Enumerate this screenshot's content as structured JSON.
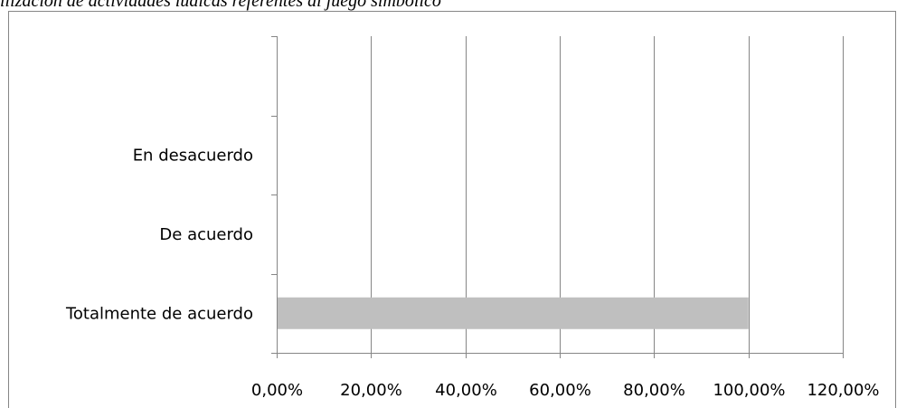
{
  "chart_data": {
    "type": "bar",
    "orientation": "horizontal",
    "title": "ilización de actividades lúdicas referentes al juego simbólico",
    "categories": [
      "Totalmente de acuerdo",
      "De acuerdo",
      "En desacuerdo",
      ""
    ],
    "values": [
      100,
      0,
      0,
      0
    ],
    "xlim": [
      0,
      120
    ],
    "x_ticks": [
      "0,00%",
      "20,00%",
      "40,00%",
      "60,00%",
      "80,00%",
      "100,00%",
      "120,00%"
    ],
    "xlabel": "",
    "ylabel": "",
    "grid": "vertical",
    "legend": "none",
    "colors": {
      "bar": "#bfbfbf",
      "grid": "#868686",
      "axis": "#868686",
      "frame": "#868686"
    }
  }
}
